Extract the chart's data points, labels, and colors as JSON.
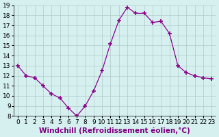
{
  "x": [
    0,
    1,
    2,
    3,
    4,
    5,
    6,
    7,
    8,
    9,
    10,
    11,
    12,
    13,
    14,
    15,
    16,
    17,
    18,
    19,
    20,
    21,
    22,
    23
  ],
  "y": [
    13.0,
    12.0,
    11.8,
    11.0,
    10.2,
    9.8,
    8.8,
    8.0,
    9.0,
    10.5,
    12.5,
    15.2,
    17.5,
    18.8,
    18.2,
    18.2,
    17.3,
    17.4,
    16.2,
    13.0,
    12.3,
    12.0,
    11.8,
    11.7
  ],
  "line_color": "#8b008b",
  "marker": "+",
  "marker_size": 4,
  "bg_color": "#d6f0f0",
  "grid_color": "#b0c8c8",
  "xlabel": "Windchill (Refroidissement éolien,°C)",
  "xlim": [
    -0.5,
    23.5
  ],
  "ylim": [
    8,
    19
  ],
  "yticks": [
    8,
    9,
    10,
    11,
    12,
    13,
    14,
    15,
    16,
    17,
    18,
    19
  ],
  "xticks": [
    0,
    1,
    2,
    3,
    4,
    5,
    6,
    7,
    8,
    9,
    10,
    11,
    12,
    13,
    14,
    15,
    16,
    17,
    18,
    19,
    20,
    21,
    22,
    23
  ],
  "tick_fontsize": 6.5,
  "xlabel_fontsize": 7.5
}
